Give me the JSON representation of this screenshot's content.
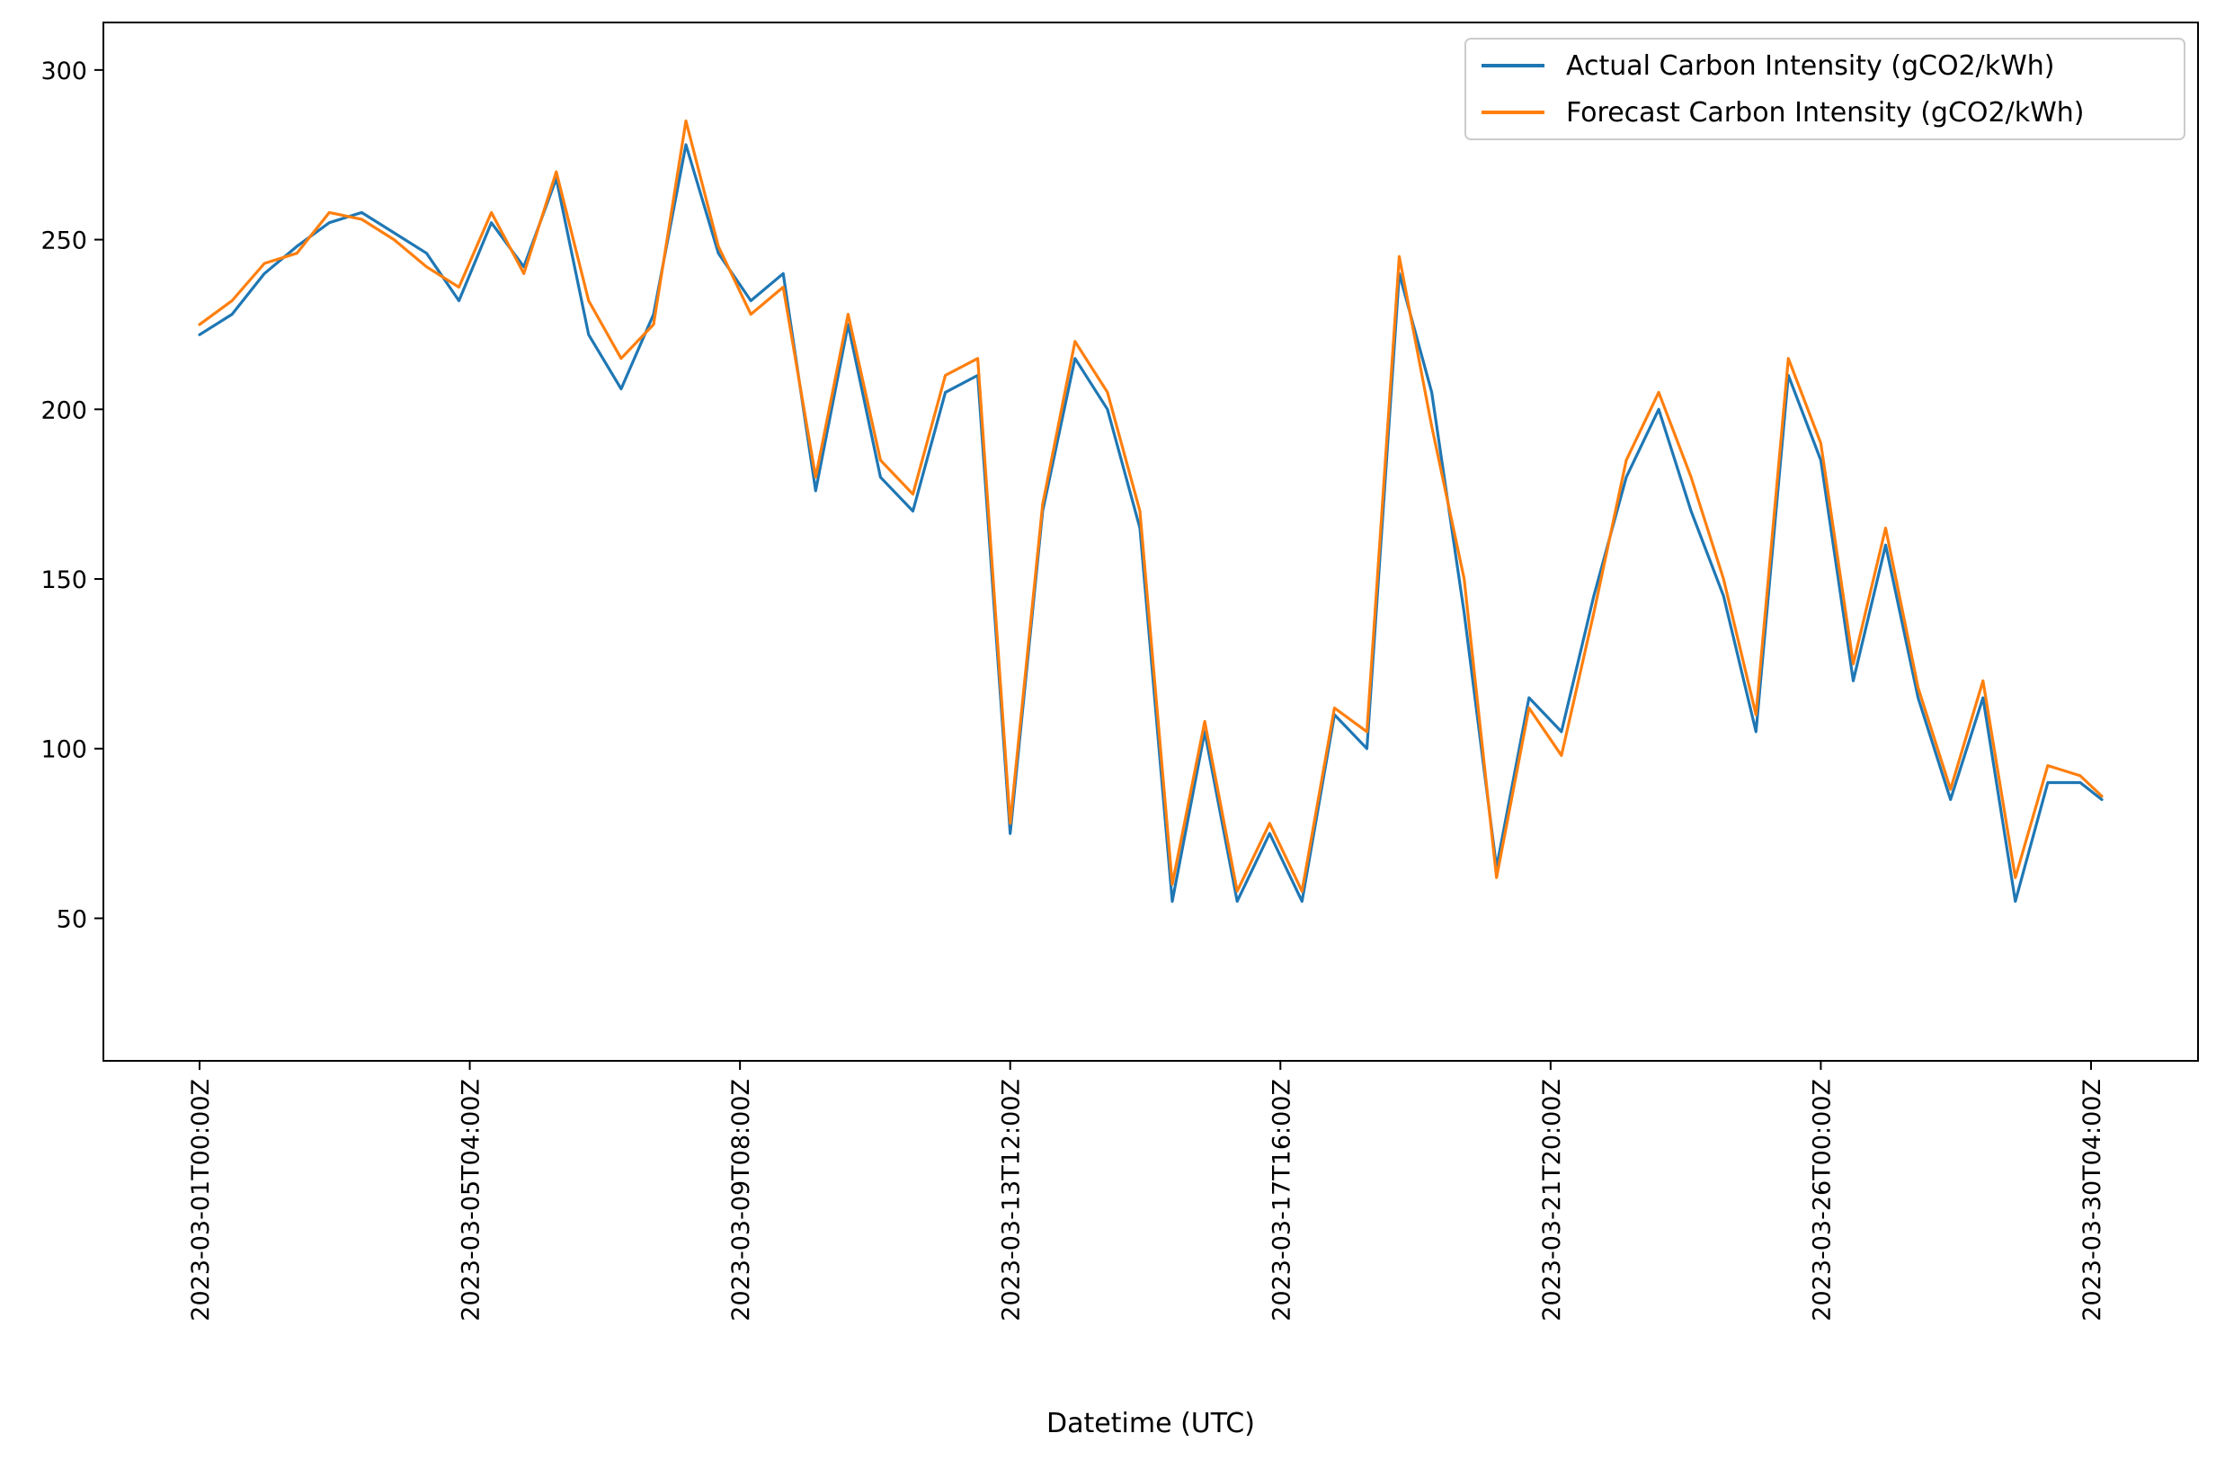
{
  "chart_data": {
    "type": "line",
    "title": "",
    "xlabel": "Datetime (UTC)",
    "ylabel": "",
    "x_range": [
      "2023-03-01T00:00Z",
      "2023-03-30T08:00Z"
    ],
    "ylim": [
      8,
      314
    ],
    "y_ticks": [
      50,
      100,
      150,
      200,
      250,
      300
    ],
    "x_ticks": [
      "2023-03-01T00:00Z",
      "2023-03-05T04:00Z",
      "2023-03-09T08:00Z",
      "2023-03-13T12:00Z",
      "2023-03-17T16:00Z",
      "2023-03-21T20:00Z",
      "2023-03-26T00:00Z",
      "2023-03-30T04:00Z"
    ],
    "grid": false,
    "legend_position": "upper right",
    "legend_line_color_note": "series colors",
    "x": [
      "2023-03-01T00:00Z",
      "2023-03-01T12:00Z",
      "2023-03-02T00:00Z",
      "2023-03-02T12:00Z",
      "2023-03-03T00:00Z",
      "2023-03-03T12:00Z",
      "2023-03-04T00:00Z",
      "2023-03-04T12:00Z",
      "2023-03-05T00:00Z",
      "2023-03-05T12:00Z",
      "2023-03-06T00:00Z",
      "2023-03-06T12:00Z",
      "2023-03-07T00:00Z",
      "2023-03-07T12:00Z",
      "2023-03-08T00:00Z",
      "2023-03-08T12:00Z",
      "2023-03-09T00:00Z",
      "2023-03-09T12:00Z",
      "2023-03-10T00:00Z",
      "2023-03-10T12:00Z",
      "2023-03-11T00:00Z",
      "2023-03-11T12:00Z",
      "2023-03-12T00:00Z",
      "2023-03-12T12:00Z",
      "2023-03-13T00:00Z",
      "2023-03-13T12:00Z",
      "2023-03-14T00:00Z",
      "2023-03-14T12:00Z",
      "2023-03-15T00:00Z",
      "2023-03-15T12:00Z",
      "2023-03-16T00:00Z",
      "2023-03-16T12:00Z",
      "2023-03-17T00:00Z",
      "2023-03-17T12:00Z",
      "2023-03-18T00:00Z",
      "2023-03-18T12:00Z",
      "2023-03-19T00:00Z",
      "2023-03-19T12:00Z",
      "2023-03-20T00:00Z",
      "2023-03-20T12:00Z",
      "2023-03-21T00:00Z",
      "2023-03-21T12:00Z",
      "2023-03-22T00:00Z",
      "2023-03-22T12:00Z",
      "2023-03-23T00:00Z",
      "2023-03-23T12:00Z",
      "2023-03-24T00:00Z",
      "2023-03-24T12:00Z",
      "2023-03-25T00:00Z",
      "2023-03-25T12:00Z",
      "2023-03-26T00:00Z",
      "2023-03-26T12:00Z",
      "2023-03-27T00:00Z",
      "2023-03-27T12:00Z",
      "2023-03-28T00:00Z",
      "2023-03-28T12:00Z",
      "2023-03-29T00:00Z",
      "2023-03-29T12:00Z",
      "2023-03-30T00:00Z",
      "2023-03-30T08:00Z"
    ],
    "series": [
      {
        "name": "Actual Carbon Intensity (gCO2/kWh)",
        "color": "#1f77b4",
        "values": [
          222,
          228,
          240,
          248,
          255,
          258,
          252,
          246,
          232,
          255,
          242,
          268,
          222,
          206,
          228,
          278,
          246,
          232,
          240,
          176,
          225,
          180,
          170,
          205,
          210,
          75,
          170,
          215,
          200,
          165,
          55,
          105,
          55,
          75,
          55,
          110,
          100,
          240,
          205,
          140,
          65,
          115,
          105,
          145,
          180,
          200,
          170,
          145,
          105,
          210,
          185,
          120,
          160,
          115,
          85,
          115,
          55,
          90,
          90,
          85
        ]
      },
      {
        "name": "Forecast Carbon Intensity (gCO2/kWh)",
        "color": "#ff7f0e",
        "values": [
          225,
          232,
          243,
          246,
          258,
          256,
          250,
          242,
          236,
          258,
          240,
          270,
          232,
          215,
          225,
          285,
          248,
          228,
          236,
          180,
          228,
          185,
          175,
          210,
          215,
          78,
          172,
          220,
          205,
          170,
          60,
          108,
          58,
          78,
          58,
          112,
          105,
          245,
          195,
          150,
          62,
          112,
          98,
          140,
          185,
          205,
          180,
          150,
          110,
          215,
          190,
          125,
          165,
          118,
          88,
          120,
          62,
          95,
          92,
          86
        ]
      }
    ]
  }
}
